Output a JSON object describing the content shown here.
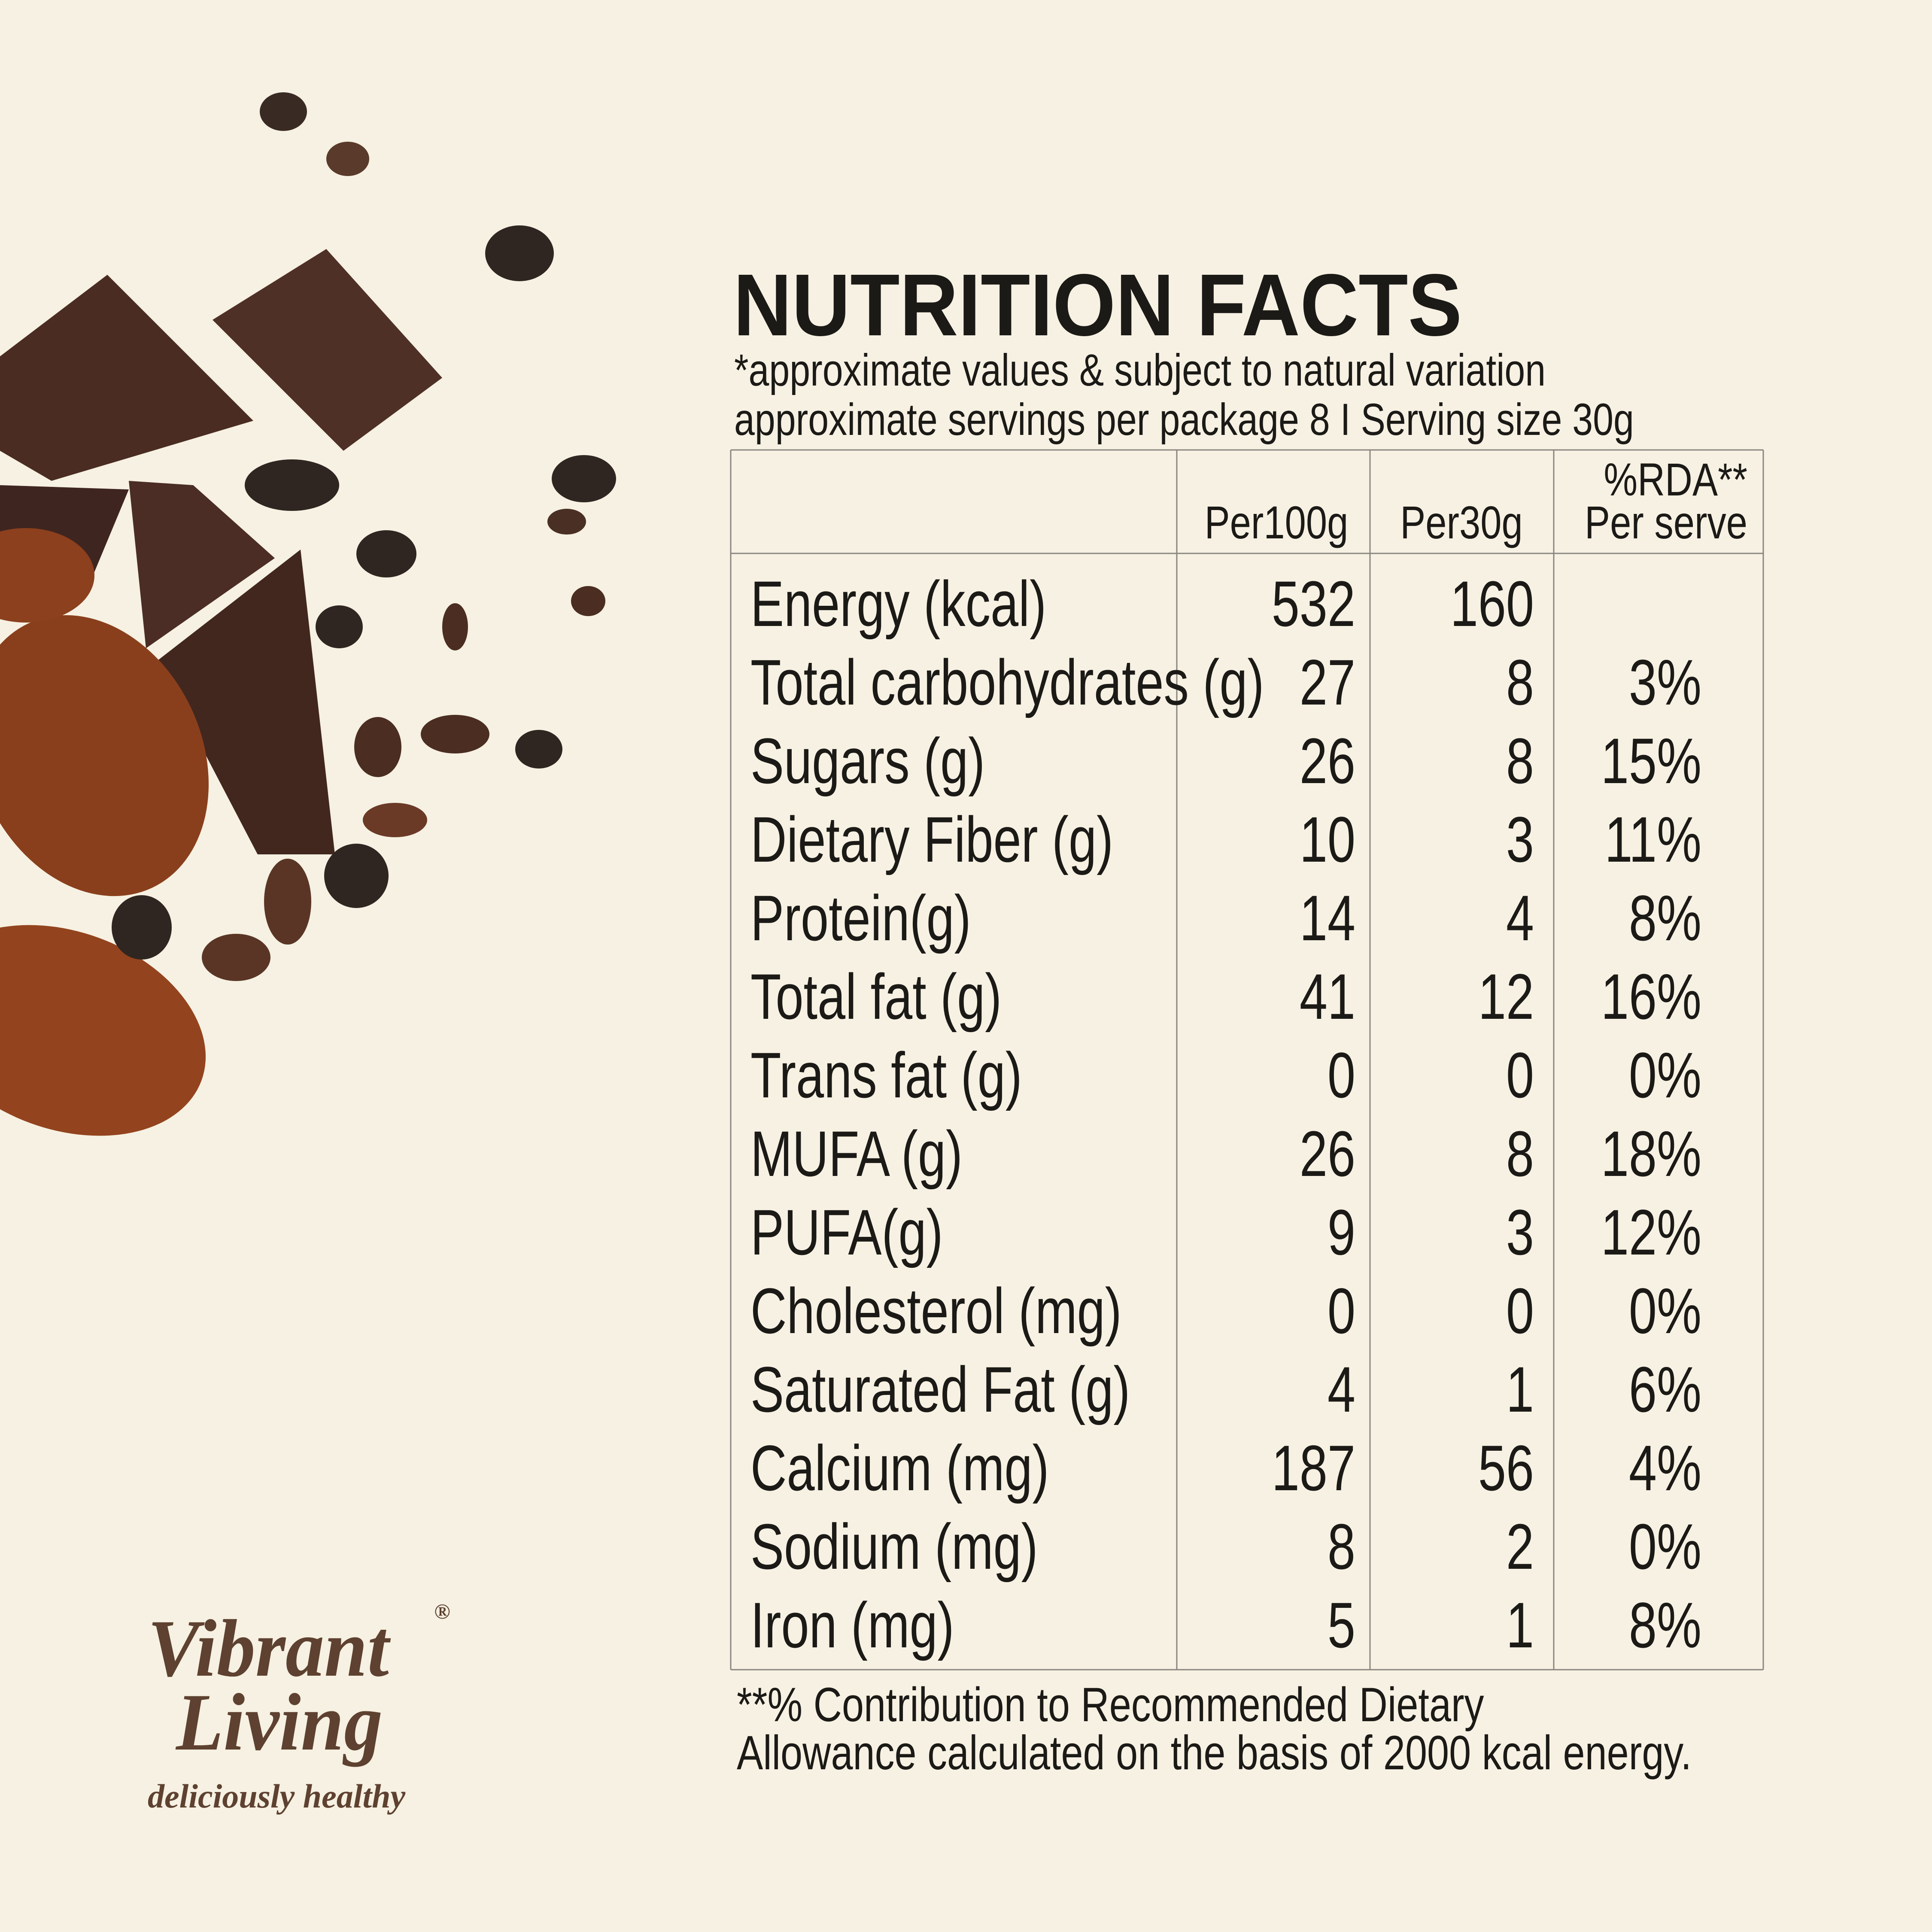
{
  "title": "NUTRITION FACTS",
  "notes": [
    "*approximate values & subject to natural variation",
    "approximate servings per package 8 I Serving size 30g"
  ],
  "table": {
    "header": {
      "per100g": "Per100g",
      "per30g": "Per30g",
      "rda": [
        "%RDA**",
        "Per serve"
      ]
    },
    "rows": [
      [
        "Energy (kcal)",
        "532",
        "160"
      ],
      [
        "Total carbohydrates (g)",
        "27",
        "8",
        "3%"
      ],
      [
        "Sugars (g)",
        "26",
        "8",
        "15%"
      ],
      [
        "Dietary Fiber (g)",
        "10",
        "3",
        "11%"
      ],
      [
        "Protein(g)",
        "14",
        "4",
        "8%"
      ],
      [
        "Total fat (g)",
        "41",
        "12",
        "16%"
      ],
      [
        "Trans fat (g)",
        "0",
        "0",
        "0%"
      ],
      [
        "MUFA (g)",
        "26",
        "8",
        "18%"
      ],
      [
        "PUFA(g)",
        "9",
        "3",
        "12%"
      ],
      [
        "Cholesterol (mg)",
        "0",
        "0",
        "0%"
      ],
      [
        "Saturated Fat (g)",
        "4",
        "1",
        "6%"
      ],
      [
        "Calcium (mg)",
        "187",
        "56",
        "4%"
      ],
      [
        "Sodium (mg)",
        "8",
        "2",
        "0%"
      ],
      [
        "Iron (mg)",
        "5",
        "1",
        "8%"
      ]
    ]
  },
  "footnote": [
    "**% Contribution to Recommended Dietary",
    "Allowance calculated on the basis of 2000 kcal energy."
  ],
  "brand": {
    "name": [
      "Vibrant",
      "Living"
    ],
    "mark": "®",
    "tagline": "deliciously healthy"
  }
}
